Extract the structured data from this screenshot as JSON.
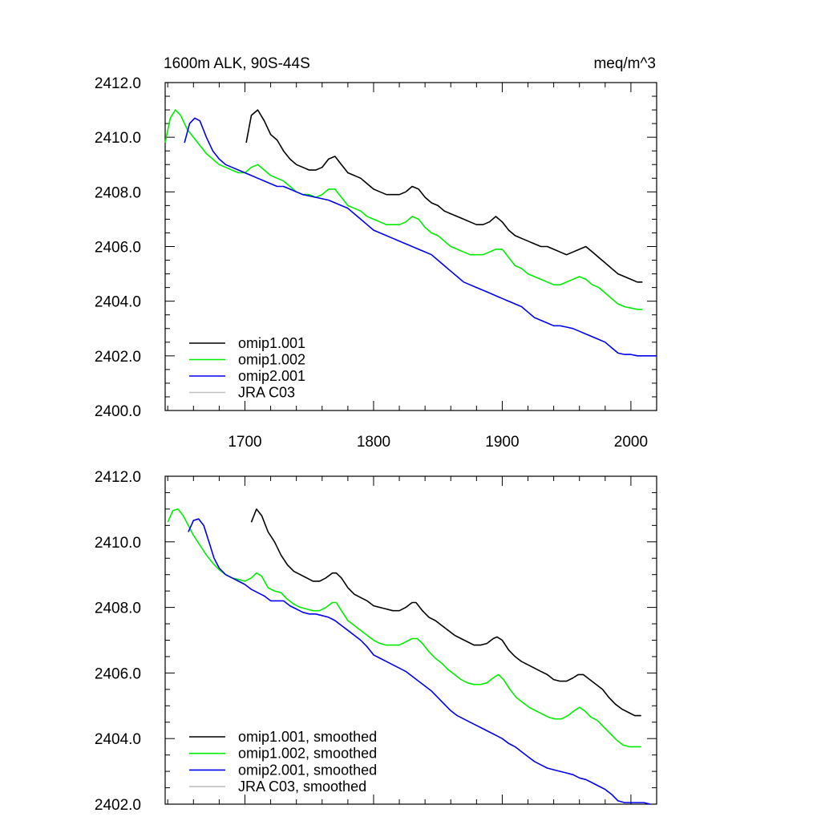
{
  "figure": {
    "title_left": "1600m ALK, 90S-44S",
    "title_right": "meq/m^3"
  },
  "chart_data": [
    {
      "type": "line",
      "title": "1600m ALK, 90S-44S",
      "units": "meq/m^3",
      "xlabel": "",
      "ylabel": "",
      "xlim": [
        1638,
        2020
      ],
      "ylim": [
        2400.0,
        2412.0
      ],
      "x_ticks": [
        1700,
        1800,
        1900,
        2000
      ],
      "x_tick_labels": [
        "1700",
        "1800",
        "1900",
        "2000"
      ],
      "y_ticks": [
        2400.0,
        2402.0,
        2404.0,
        2406.0,
        2408.0,
        2410.0,
        2412.0
      ],
      "y_tick_labels": [
        "2400.0",
        "2402.0",
        "2404.0",
        "2406.0",
        "2408.0",
        "2410.0",
        "2412.0"
      ],
      "legend_position": "lower-left",
      "series": [
        {
          "name": "omip1.001",
          "color": "#000000",
          "x": [
            1701,
            1705,
            1710,
            1715,
            1720,
            1725,
            1730,
            1735,
            1740,
            1745,
            1750,
            1755,
            1760,
            1765,
            1770,
            1775,
            1780,
            1785,
            1790,
            1795,
            1800,
            1805,
            1810,
            1815,
            1820,
            1825,
            1830,
            1835,
            1840,
            1845,
            1850,
            1855,
            1860,
            1865,
            1870,
            1875,
            1880,
            1885,
            1890,
            1895,
            1900,
            1905,
            1910,
            1915,
            1920,
            1925,
            1930,
            1935,
            1940,
            1945,
            1950,
            1955,
            1960,
            1965,
            1970,
            1975,
            1980,
            1985,
            1990,
            1995,
            2000,
            2005,
            2009
          ],
          "y": [
            2409.8,
            2410.8,
            2411.0,
            2410.6,
            2410.1,
            2409.9,
            2409.5,
            2409.2,
            2409.0,
            2408.9,
            2408.8,
            2408.8,
            2408.9,
            2409.2,
            2409.3,
            2409.0,
            2408.7,
            2408.6,
            2408.5,
            2408.3,
            2408.1,
            2408.0,
            2407.9,
            2407.9,
            2407.9,
            2408.0,
            2408.2,
            2408.1,
            2407.8,
            2407.6,
            2407.5,
            2407.3,
            2407.2,
            2407.1,
            2407.0,
            2406.9,
            2406.8,
            2406.8,
            2406.9,
            2407.1,
            2406.9,
            2406.6,
            2406.4,
            2406.3,
            2406.2,
            2406.1,
            2406.0,
            2406.0,
            2405.9,
            2405.8,
            2405.7,
            2405.8,
            2405.9,
            2406.0,
            2405.8,
            2405.6,
            2405.4,
            2405.2,
            2405.0,
            2404.9,
            2404.8,
            2404.7,
            2404.7
          ]
        },
        {
          "name": "omip1.002",
          "color": "#00ee00",
          "x": [
            1638,
            1642,
            1646,
            1650,
            1655,
            1660,
            1665,
            1670,
            1675,
            1680,
            1685,
            1690,
            1695,
            1700,
            1705,
            1710,
            1715,
            1720,
            1725,
            1730,
            1735,
            1740,
            1745,
            1750,
            1755,
            1760,
            1765,
            1770,
            1775,
            1780,
            1785,
            1790,
            1795,
            1800,
            1805,
            1810,
            1815,
            1820,
            1825,
            1830,
            1835,
            1840,
            1845,
            1850,
            1855,
            1860,
            1865,
            1870,
            1875,
            1880,
            1885,
            1890,
            1895,
            1900,
            1905,
            1910,
            1915,
            1920,
            1925,
            1930,
            1935,
            1940,
            1945,
            1950,
            1955,
            1960,
            1965,
            1970,
            1975,
            1980,
            1985,
            1990,
            1995,
            2000,
            2005,
            2009
          ],
          "y": [
            2409.8,
            2410.7,
            2411.0,
            2410.8,
            2410.3,
            2410.0,
            2409.7,
            2409.4,
            2409.2,
            2409.0,
            2408.9,
            2408.8,
            2408.7,
            2408.7,
            2408.9,
            2409.0,
            2408.8,
            2408.6,
            2408.5,
            2408.4,
            2408.2,
            2408.0,
            2407.9,
            2407.9,
            2407.8,
            2407.9,
            2408.1,
            2408.1,
            2407.8,
            2407.5,
            2407.4,
            2407.3,
            2407.1,
            2407.0,
            2406.9,
            2406.8,
            2406.8,
            2406.8,
            2406.9,
            2407.1,
            2407.0,
            2406.7,
            2406.5,
            2406.4,
            2406.2,
            2406.0,
            2405.9,
            2405.8,
            2405.7,
            2405.7,
            2405.7,
            2405.8,
            2405.9,
            2405.9,
            2405.6,
            2405.3,
            2405.2,
            2405.0,
            2404.9,
            2404.8,
            2404.7,
            2404.6,
            2404.6,
            2404.7,
            2404.8,
            2404.9,
            2404.8,
            2404.6,
            2404.5,
            2404.3,
            2404.1,
            2403.9,
            2403.8,
            2403.75,
            2403.7,
            2403.7
          ]
        },
        {
          "name": "omip2.001",
          "color": "#0000ee",
          "x": [
            1653,
            1657,
            1661,
            1665,
            1670,
            1675,
            1680,
            1685,
            1690,
            1695,
            1700,
            1705,
            1710,
            1715,
            1720,
            1725,
            1730,
            1735,
            1740,
            1745,
            1750,
            1755,
            1760,
            1765,
            1770,
            1775,
            1780,
            1785,
            1790,
            1795,
            1800,
            1805,
            1810,
            1815,
            1820,
            1825,
            1830,
            1835,
            1840,
            1845,
            1850,
            1855,
            1860,
            1865,
            1870,
            1875,
            1880,
            1885,
            1890,
            1895,
            1900,
            1905,
            1910,
            1915,
            1920,
            1925,
            1930,
            1935,
            1940,
            1945,
            1950,
            1955,
            1960,
            1965,
            1970,
            1975,
            1980,
            1985,
            1990,
            1995,
            2000,
            2005,
            2010,
            2015,
            2020
          ],
          "y": [
            2409.8,
            2410.5,
            2410.7,
            2410.6,
            2410.0,
            2409.5,
            2409.2,
            2409.0,
            2408.9,
            2408.8,
            2408.7,
            2408.6,
            2408.5,
            2408.4,
            2408.3,
            2408.2,
            2408.2,
            2408.1,
            2408.0,
            2407.9,
            2407.85,
            2407.8,
            2407.75,
            2407.7,
            2407.6,
            2407.5,
            2407.4,
            2407.2,
            2407.0,
            2406.8,
            2406.6,
            2406.5,
            2406.4,
            2406.3,
            2406.2,
            2406.1,
            2406.0,
            2405.9,
            2405.8,
            2405.7,
            2405.5,
            2405.3,
            2405.1,
            2404.9,
            2404.7,
            2404.6,
            2404.5,
            2404.4,
            2404.3,
            2404.2,
            2404.1,
            2404.0,
            2403.9,
            2403.8,
            2403.6,
            2403.4,
            2403.3,
            2403.2,
            2403.1,
            2403.1,
            2403.05,
            2403.0,
            2402.9,
            2402.8,
            2402.7,
            2402.6,
            2402.5,
            2402.3,
            2402.1,
            2402.05,
            2402.05,
            2402.0,
            2402.0,
            2402.0,
            2402.0
          ]
        },
        {
          "name": "JRA C03",
          "color": "#c0c0c0",
          "x": [],
          "y": []
        }
      ]
    },
    {
      "type": "line",
      "title": "",
      "xlabel": "",
      "ylabel": "",
      "xlim": [
        1638,
        2020
      ],
      "ylim": [
        2402.0,
        2412.0
      ],
      "x_ticks": [
        1700,
        1800,
        1900,
        2000
      ],
      "x_tick_labels": [],
      "y_ticks": [
        2402.0,
        2404.0,
        2406.0,
        2408.0,
        2410.0,
        2412.0
      ],
      "y_tick_labels": [
        "2402.0",
        "2404.0",
        "2406.0",
        "2408.0",
        "2410.0",
        "2412.0"
      ],
      "legend_position": "lower-left",
      "series": [
        {
          "name": "omip1.001, smoothed",
          "color": "#000000",
          "x": [
            1705,
            1709,
            1713,
            1718,
            1723,
            1728,
            1733,
            1738,
            1743,
            1748,
            1753,
            1758,
            1763,
            1768,
            1771,
            1775,
            1780,
            1785,
            1790,
            1795,
            1800,
            1805,
            1810,
            1815,
            1820,
            1825,
            1830,
            1833,
            1838,
            1843,
            1848,
            1853,
            1858,
            1863,
            1868,
            1873,
            1878,
            1883,
            1888,
            1893,
            1896,
            1900,
            1905,
            1910,
            1915,
            1920,
            1925,
            1930,
            1935,
            1940,
            1945,
            1950,
            1955,
            1959,
            1963,
            1968,
            1973,
            1978,
            1983,
            1988,
            1993,
            1998,
            2003,
            2008
          ],
          "y": [
            2410.6,
            2411.0,
            2410.8,
            2410.3,
            2410.0,
            2409.6,
            2409.3,
            2409.1,
            2409.0,
            2408.9,
            2408.8,
            2408.8,
            2408.9,
            2409.05,
            2409.05,
            2408.9,
            2408.6,
            2408.4,
            2408.3,
            2408.2,
            2408.05,
            2408.0,
            2407.95,
            2407.9,
            2407.9,
            2408.0,
            2408.15,
            2408.15,
            2407.9,
            2407.7,
            2407.6,
            2407.45,
            2407.3,
            2407.15,
            2407.05,
            2406.95,
            2406.85,
            2406.85,
            2406.9,
            2407.05,
            2407.1,
            2407.0,
            2406.7,
            2406.5,
            2406.35,
            2406.25,
            2406.15,
            2406.05,
            2405.95,
            2405.8,
            2405.75,
            2405.75,
            2405.85,
            2405.95,
            2405.95,
            2405.8,
            2405.65,
            2405.5,
            2405.25,
            2405.05,
            2404.9,
            2404.8,
            2404.7,
            2404.7
          ]
        },
        {
          "name": "omip1.002, smoothed",
          "color": "#00ee00",
          "x": [
            1640,
            1644,
            1648,
            1652,
            1656,
            1660,
            1665,
            1670,
            1675,
            1680,
            1685,
            1690,
            1695,
            1700,
            1705,
            1709,
            1713,
            1718,
            1723,
            1728,
            1733,
            1738,
            1743,
            1748,
            1753,
            1758,
            1763,
            1768,
            1771,
            1775,
            1780,
            1785,
            1790,
            1795,
            1800,
            1805,
            1810,
            1815,
            1820,
            1825,
            1830,
            1834,
            1838,
            1843,
            1848,
            1853,
            1858,
            1863,
            1868,
            1873,
            1878,
            1883,
            1888,
            1893,
            1897,
            1901,
            1906,
            1911,
            1916,
            1921,
            1926,
            1931,
            1936,
            1941,
            1946,
            1951,
            1956,
            1960,
            1964,
            1969,
            1974,
            1979,
            1984,
            1989,
            1994,
            1999,
            2004,
            2008
          ],
          "y": [
            2410.6,
            2410.95,
            2411.0,
            2410.8,
            2410.5,
            2410.2,
            2409.9,
            2409.6,
            2409.35,
            2409.15,
            2409.0,
            2408.9,
            2408.85,
            2408.8,
            2408.9,
            2409.05,
            2408.95,
            2408.6,
            2408.5,
            2408.45,
            2408.25,
            2408.1,
            2408.0,
            2407.95,
            2407.9,
            2407.9,
            2408.0,
            2408.15,
            2408.15,
            2407.9,
            2407.6,
            2407.45,
            2407.3,
            2407.15,
            2407.0,
            2406.9,
            2406.85,
            2406.85,
            2406.85,
            2406.95,
            2407.05,
            2407.05,
            2406.9,
            2406.65,
            2406.45,
            2406.3,
            2406.1,
            2405.95,
            2405.8,
            2405.7,
            2405.65,
            2405.65,
            2405.7,
            2405.85,
            2405.95,
            2405.8,
            2405.5,
            2405.25,
            2405.1,
            2404.95,
            2404.85,
            2404.75,
            2404.65,
            2404.6,
            2404.6,
            2404.7,
            2404.85,
            2404.95,
            2404.85,
            2404.65,
            2404.55,
            2404.35,
            2404.15,
            2403.95,
            2403.8,
            2403.75,
            2403.75,
            2403.75
          ]
        },
        {
          "name": "omip2.001, smoothed",
          "color": "#0000ee",
          "x": [
            1656,
            1660,
            1664,
            1668,
            1672,
            1676,
            1680,
            1685,
            1690,
            1695,
            1700,
            1705,
            1710,
            1715,
            1720,
            1725,
            1730,
            1735,
            1740,
            1745,
            1750,
            1755,
            1760,
            1765,
            1770,
            1775,
            1780,
            1785,
            1790,
            1795,
            1800,
            1805,
            1810,
            1815,
            1820,
            1825,
            1830,
            1835,
            1840,
            1845,
            1850,
            1855,
            1860,
            1865,
            1870,
            1875,
            1880,
            1885,
            1890,
            1895,
            1900,
            1905,
            1910,
            1915,
            1920,
            1925,
            1930,
            1935,
            1940,
            1945,
            1950,
            1955,
            1960,
            1965,
            1970,
            1975,
            1980,
            1985,
            1990,
            1995,
            2000,
            2005,
            2010,
            2015
          ],
          "y": [
            2410.3,
            2410.65,
            2410.7,
            2410.5,
            2410.0,
            2409.5,
            2409.2,
            2409.0,
            2408.9,
            2408.8,
            2408.7,
            2408.55,
            2408.45,
            2408.35,
            2408.2,
            2408.2,
            2408.2,
            2408.05,
            2407.95,
            2407.85,
            2407.8,
            2407.8,
            2407.75,
            2407.7,
            2407.6,
            2407.45,
            2407.3,
            2407.15,
            2407.0,
            2406.8,
            2406.55,
            2406.45,
            2406.35,
            2406.25,
            2406.15,
            2406.05,
            2405.9,
            2405.75,
            2405.6,
            2405.45,
            2405.25,
            2405.05,
            2404.85,
            2404.7,
            2404.6,
            2404.5,
            2404.4,
            2404.3,
            2404.2,
            2404.1,
            2404.0,
            2403.85,
            2403.75,
            2403.6,
            2403.45,
            2403.3,
            2403.2,
            2403.1,
            2403.05,
            2403.0,
            2402.95,
            2402.9,
            2402.8,
            2402.75,
            2402.65,
            2402.55,
            2402.45,
            2402.3,
            2402.1,
            2402.05,
            2402.05,
            2402.05,
            2402.05,
            2402.0
          ]
        },
        {
          "name": "JRA C03, smoothed",
          "color": "#c0c0c0",
          "x": [],
          "y": []
        }
      ]
    }
  ]
}
